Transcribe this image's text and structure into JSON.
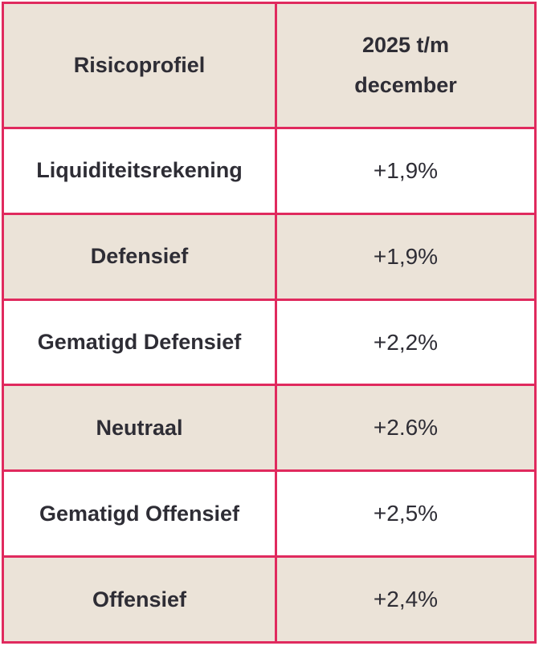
{
  "colors": {
    "border": "#e02a5e",
    "header_bg": "#ebe3d8",
    "stripe_bg": "#ebe3d8",
    "text": "#2e2d35",
    "background": "#ffffff"
  },
  "table": {
    "header": {
      "col1": "Risicoprofiel",
      "col2_lines": [
        "2025 t/m",
        "december"
      ]
    },
    "rows": [
      {
        "profile": "Liquiditeitsrekening",
        "value": "+1,9%"
      },
      {
        "profile": "Defensief",
        "value": "+1,9%"
      },
      {
        "profile": "Gematigd Defensief",
        "value": "+2,2%"
      },
      {
        "profile": "Neutraal",
        "value": "+2.6%"
      },
      {
        "profile": "Gematigd Offensief",
        "value": "+2,5%"
      },
      {
        "profile": "Offensief",
        "value": "+2,4%"
      }
    ]
  },
  "chart_data": {
    "type": "table",
    "title": "Risicoprofiel rendement 2025 t/m december",
    "columns": [
      "Risicoprofiel",
      "2025 t/m december"
    ],
    "rows": [
      [
        "Liquiditeitsrekening",
        "+1,9%"
      ],
      [
        "Defensief",
        "+1,9%"
      ],
      [
        "Gematigd Defensief",
        "+2,2%"
      ],
      [
        "Neutraal",
        "+2.6%"
      ],
      [
        "Gematigd Offensief",
        "+2,5%"
      ],
      [
        "Offensief",
        "+2,4%"
      ]
    ],
    "values_numeric_pct": [
      1.9,
      1.9,
      2.2,
      2.6,
      2.5,
      2.4
    ],
    "layout": {
      "header_background": "#ebe3d8",
      "row_striping": "white/beige alternating",
      "grid_color": "#e02a5e"
    }
  }
}
